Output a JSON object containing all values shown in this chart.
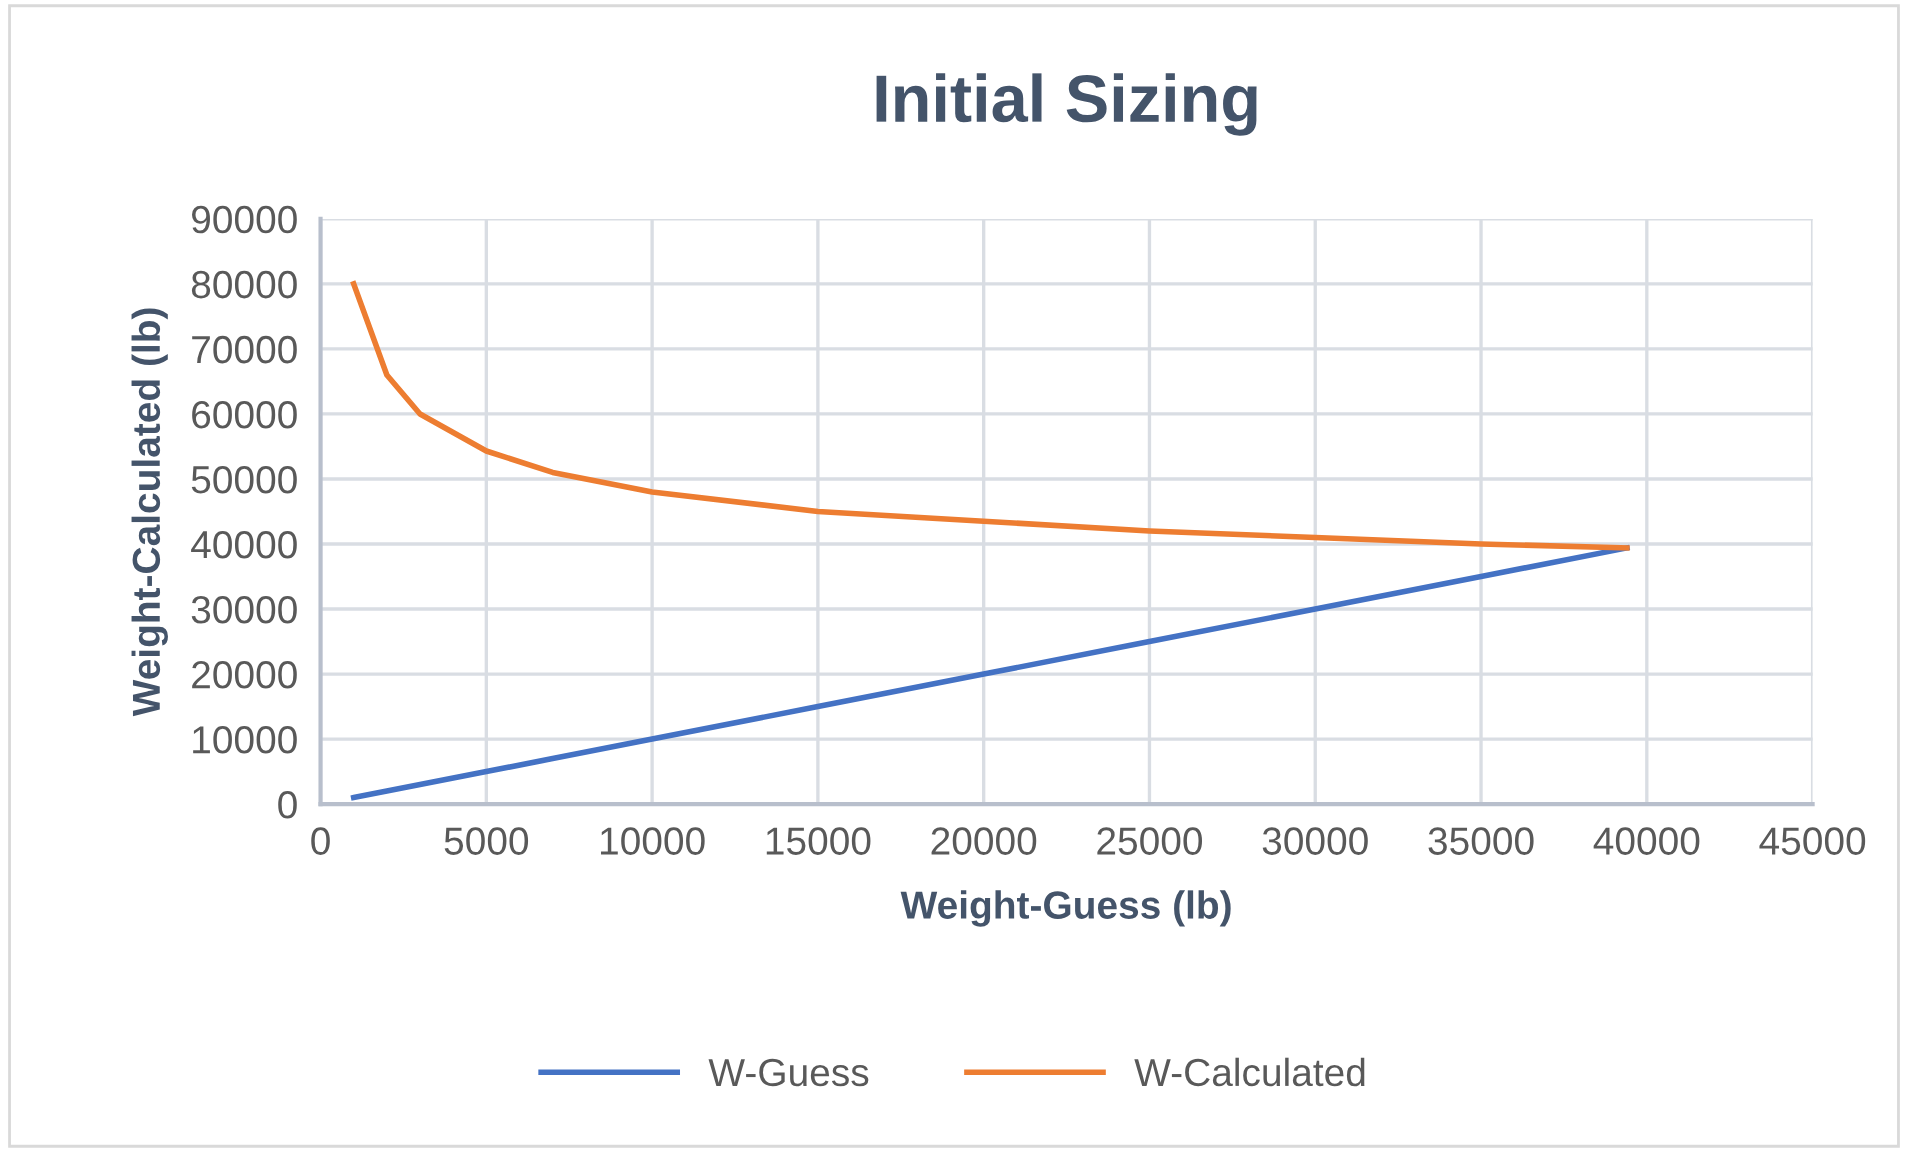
{
  "chart_data": {
    "type": "line",
    "title": "Initial Sizing",
    "xlabel": "Weight-Guess (lb)",
    "ylabel": "Weight-Calculated (lb)",
    "series": [
      {
        "name": "W-Guess",
        "color": "#4472c4",
        "x": [
          1000,
          2000,
          3000,
          5000,
          7000,
          10000,
          15000,
          20000,
          25000,
          30000,
          35000,
          39400
        ],
        "values": [
          1000,
          2000,
          3000,
          5000,
          7000,
          10000,
          15000,
          20000,
          25000,
          30000,
          35000,
          39400
        ]
      },
      {
        "name": "W-Calculated",
        "color": "#ed7d31",
        "x": [
          1000,
          2000,
          3000,
          5000,
          7000,
          10000,
          15000,
          20000,
          25000,
          30000,
          35000,
          39400
        ],
        "values": [
          80000,
          66000,
          60000,
          54300,
          51000,
          48000,
          45000,
          43500,
          42000,
          41000,
          40000,
          39400
        ]
      }
    ],
    "xlim": [
      0,
      45000
    ],
    "xticks": [
      0,
      5000,
      10000,
      15000,
      20000,
      25000,
      30000,
      35000,
      40000,
      45000
    ],
    "ylim": [
      0,
      90000
    ],
    "yticks": [
      0,
      10000,
      20000,
      30000,
      40000,
      50000,
      60000,
      70000,
      80000,
      90000
    ],
    "grid": true,
    "legend": "bottom",
    "marker": "none",
    "line_style": "solid"
  }
}
